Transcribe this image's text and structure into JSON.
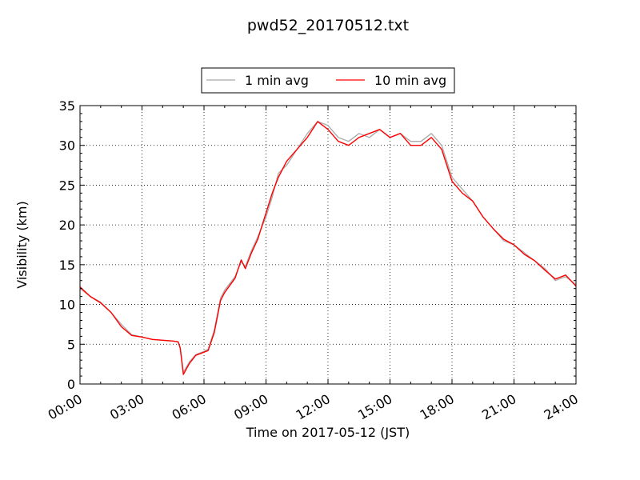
{
  "chart_data": {
    "type": "line",
    "title": "pwd52_20170512.txt",
    "xlabel": "Time on 2017-05-12 (JST)",
    "ylabel": "Visibility (km)",
    "xlim_hours": [
      0,
      24
    ],
    "ylim": [
      0,
      35
    ],
    "x_ticks": [
      "00:00",
      "03:00",
      "06:00",
      "09:00",
      "12:00",
      "15:00",
      "18:00",
      "21:00",
      "24:00"
    ],
    "y_ticks": [
      "0",
      "5",
      "10",
      "15",
      "20",
      "25",
      "30",
      "35"
    ],
    "grid": true,
    "legend_position": "top-center",
    "series": [
      {
        "name": "1 min avg",
        "color": "#a9a9a9",
        "x_hours": [
          0,
          0.5,
          1,
          1.5,
          2,
          2.5,
          3,
          3.5,
          4,
          4.5,
          4.75,
          4.85,
          5,
          5.3,
          5.6,
          6,
          6.2,
          6.5,
          6.8,
          7,
          7.5,
          7.8,
          8,
          8.3,
          8.6,
          9,
          9.3,
          9.6,
          10,
          10.5,
          11,
          11.5,
          12,
          12.5,
          13,
          13.5,
          14,
          14.5,
          15,
          15.5,
          16,
          16.5,
          17,
          17.5,
          18,
          18.5,
          19,
          19.5,
          20,
          20.5,
          21,
          21.5,
          22,
          22.5,
          23,
          23.5,
          24
        ],
        "values": [
          12,
          11,
          10.3,
          9,
          7.5,
          6.2,
          5.9,
          5.6,
          5.5,
          5.4,
          5.3,
          4.6,
          1.5,
          2.8,
          3.7,
          4.1,
          4.4,
          6.8,
          10.8,
          11.8,
          13.5,
          15.4,
          14.8,
          16.8,
          18.5,
          21,
          23.5,
          26.5,
          27.5,
          29.5,
          31.5,
          33,
          32.5,
          31,
          30.5,
          31.5,
          31,
          32,
          31,
          31.5,
          30.5,
          30.5,
          31.5,
          30,
          26,
          24.5,
          23,
          21,
          19.5,
          18,
          17.5,
          16.5,
          15.5,
          14.5,
          13,
          13.5,
          12.5
        ]
      },
      {
        "name": "10 min avg",
        "color": "#ff0000",
        "x_hours": [
          0,
          0.5,
          1,
          1.5,
          2,
          2.5,
          3,
          3.5,
          4,
          4.5,
          4.75,
          4.85,
          5,
          5.3,
          5.6,
          6,
          6.2,
          6.5,
          6.8,
          7,
          7.5,
          7.8,
          8,
          8.3,
          8.6,
          9,
          9.3,
          9.6,
          10,
          10.5,
          11,
          11.5,
          12,
          12.5,
          13,
          13.5,
          14,
          14.5,
          15,
          15.5,
          16,
          16.5,
          17,
          17.5,
          18,
          18.5,
          19,
          19.5,
          20,
          20.5,
          21,
          21.5,
          22,
          22.5,
          23,
          23.5,
          24
        ],
        "values": [
          12.2,
          11,
          10.2,
          9,
          7.2,
          6.1,
          5.9,
          5.6,
          5.5,
          5.4,
          5.3,
          4.5,
          1.2,
          2.6,
          3.6,
          4,
          4.2,
          6.5,
          10.5,
          11.5,
          13.3,
          15.6,
          14.5,
          16.5,
          18.2,
          21.5,
          24,
          26,
          28,
          29.5,
          31,
          33,
          32,
          30.5,
          30,
          31,
          31.5,
          32,
          31,
          31.5,
          30,
          30,
          31,
          29.5,
          25.5,
          24,
          23,
          21,
          19.5,
          18.2,
          17.5,
          16.3,
          15.5,
          14.3,
          13.2,
          13.7,
          12.3
        ]
      }
    ]
  }
}
